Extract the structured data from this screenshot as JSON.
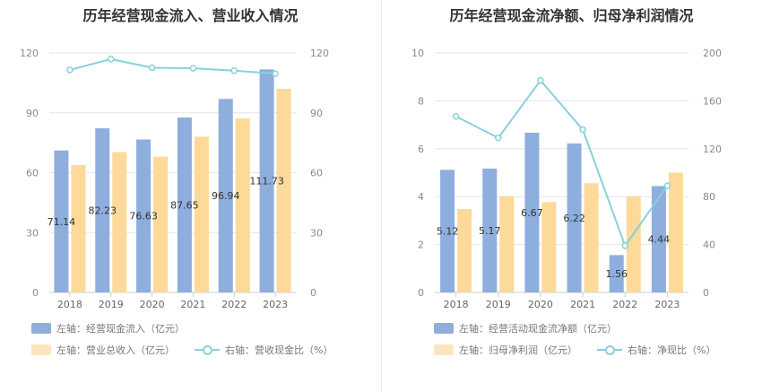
{
  "chart_data": [
    {
      "type": "bar",
      "title": "历年经营现金流入、营业收入情况",
      "categories": [
        "2018",
        "2019",
        "2020",
        "2021",
        "2022",
        "2023"
      ],
      "series": [
        {
          "name": "左轴：经营现金流入（亿元）",
          "axis": "left",
          "values": [
            71.14,
            82.23,
            76.63,
            87.65,
            96.94,
            111.73
          ],
          "color": "#8eaedd",
          "labels": [
            "71.14",
            "82.23",
            "76.63",
            "87.65",
            "96.94",
            "111.73"
          ]
        },
        {
          "name": "左轴：营业总收入（亿元）",
          "axis": "left",
          "values": [
            63.8,
            70.3,
            68.0,
            78.0,
            87.2,
            102.0
          ],
          "color": "#fdd99a"
        },
        {
          "name": "右轴：营收现金比（%）",
          "axis": "right",
          "type": "line",
          "values": [
            111.5,
            116.9,
            112.6,
            112.3,
            111.1,
            109.6
          ],
          "color": "#86d2dc"
        }
      ],
      "left_axis": {
        "ylim": [
          0,
          120
        ],
        "ticks": [
          0,
          30,
          60,
          90,
          120
        ]
      },
      "right_axis": {
        "ylim": [
          0,
          120
        ],
        "ticks": [
          0,
          30,
          60,
          90,
          120
        ]
      },
      "grid": true,
      "legend_position": "bottom-left"
    },
    {
      "type": "bar",
      "title": "历年经营现金流净额、归母净利润情况",
      "categories": [
        "2018",
        "2019",
        "2020",
        "2021",
        "2022",
        "2023"
      ],
      "series": [
        {
          "name": "左轴：经营活动现金流净额（亿元）",
          "axis": "left",
          "values": [
            5.12,
            5.17,
            6.67,
            6.22,
            1.56,
            4.44
          ],
          "color": "#8eaedd",
          "labels": [
            "5.12",
            "5.17",
            "6.67",
            "6.22",
            "1.56",
            "4.44"
          ]
        },
        {
          "name": "左轴：归母净利润（亿元）",
          "axis": "left",
          "values": [
            3.48,
            4.02,
            3.77,
            4.56,
            4.02,
            5.0
          ],
          "color": "#fdd99a"
        },
        {
          "name": "右轴：净现比（%）",
          "axis": "right",
          "type": "line",
          "values": [
            147,
            129,
            177,
            136,
            39,
            89
          ],
          "color": "#86d2dc"
        }
      ],
      "left_axis": {
        "ylim": [
          0,
          10
        ],
        "ticks": [
          0,
          2,
          4,
          6,
          8,
          10
        ]
      },
      "right_axis": {
        "ylim": [
          0,
          200
        ],
        "ticks": [
          0,
          40,
          80,
          120,
          160,
          200
        ]
      },
      "grid": true,
      "legend_position": "bottom-left"
    }
  ]
}
